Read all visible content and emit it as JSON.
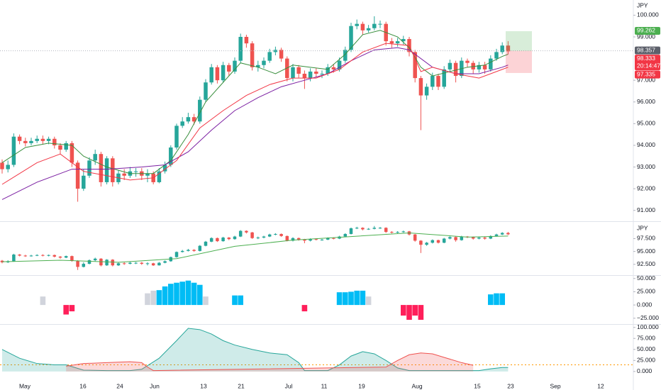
{
  "chart_data": [
    {
      "type": "candlestick",
      "unit": "JPY",
      "up_color": "#26a69a",
      "down_color": "#ef5350",
      "ylim": [
        90.5,
        100.7
      ],
      "yticks": [
        {
          "value": 100,
          "label": "100.000"
        },
        {
          "value": 99,
          "label": "99.000"
        },
        {
          "value": 97,
          "label": "97.000"
        },
        {
          "value": 96,
          "label": "96.000"
        },
        {
          "value": 95,
          "label": "95.000"
        },
        {
          "value": 94,
          "label": "94.000"
        },
        {
          "value": 93,
          "label": "93.000"
        },
        {
          "value": 92,
          "label": "92.000"
        },
        {
          "value": 91,
          "label": "91.000"
        }
      ],
      "open": [
        93.2,
        92.9,
        93.1,
        94.4,
        94.2,
        94.1,
        94.2,
        94.3,
        94.2,
        94.3,
        94.0,
        93.8,
        94.1,
        93.2,
        92.0,
        92.6,
        93.3,
        93.6,
        92.3,
        93.4,
        92.3,
        92.7,
        92.6,
        92.8,
        92.8,
        92.6,
        92.7,
        92.3,
        92.8,
        93.1,
        93.9,
        94.9,
        95.1,
        95.3,
        95.1,
        96.1,
        96.9,
        97.6,
        97.0,
        97.7,
        97.4,
        97.9,
        99.0,
        98.7,
        97.6,
        97.7,
        97.9,
        98.3,
        98.4,
        98.0,
        97.1,
        97.6,
        97.3,
        97.1,
        97.4,
        97.3,
        97.3,
        97.6,
        97.5,
        97.9,
        98.4,
        99.5,
        99.6,
        99.3,
        99.4,
        99.6,
        99.6,
        98.8,
        98.7,
        98.8,
        98.9,
        98.3,
        97.1,
        96.3,
        96.7,
        97.2,
        96.7,
        97.5,
        97.8,
        97.2,
        97.9,
        97.8,
        97.5,
        97.7,
        97.5,
        98.0,
        98.3,
        98.6
      ],
      "high": [
        93.35,
        93.3,
        94.55,
        94.5,
        94.35,
        94.35,
        94.45,
        94.45,
        94.4,
        94.4,
        94.1,
        94.2,
        94.2,
        93.3,
        92.9,
        93.45,
        93.8,
        93.7,
        93.5,
        93.5,
        92.85,
        92.9,
        93.0,
        92.95,
        92.95,
        92.9,
        92.8,
        92.95,
        93.25,
        94.0,
        95.0,
        95.3,
        95.5,
        95.45,
        96.25,
        97.05,
        97.75,
        97.7,
        97.85,
        97.8,
        98.05,
        99.15,
        99.1,
        98.8,
        97.9,
        98.05,
        98.45,
        98.55,
        98.5,
        98.1,
        97.75,
        97.7,
        97.45,
        97.55,
        97.55,
        97.45,
        97.75,
        97.75,
        98.05,
        98.55,
        99.65,
        99.8,
        99.7,
        99.55,
        99.95,
        99.75,
        99.7,
        98.95,
        98.95,
        99.05,
        99.0,
        98.4,
        97.2,
        96.85,
        97.35,
        97.3,
        97.65,
        97.95,
        97.9,
        98.05,
        98.0,
        97.9,
        97.85,
        97.85,
        98.15,
        98.45,
        98.75,
        98.8
      ],
      "low": [
        92.7,
        92.75,
        93.0,
        94.05,
        93.95,
        94.0,
        94.1,
        94.05,
        94.05,
        93.85,
        93.6,
        93.7,
        93.0,
        91.4,
        91.9,
        92.5,
        93.1,
        92.1,
        92.2,
        92.1,
        92.2,
        92.4,
        92.5,
        92.55,
        92.4,
        92.3,
        92.2,
        92.25,
        92.7,
        93.0,
        93.8,
        94.8,
        95.0,
        94.95,
        95.0,
        96.0,
        96.8,
        96.85,
        96.9,
        97.2,
        97.3,
        97.8,
        98.5,
        97.45,
        97.4,
        97.55,
        97.8,
        98.15,
        97.85,
        96.95,
        96.95,
        97.1,
        96.6,
        96.95,
        97.15,
        97.1,
        97.2,
        97.35,
        97.4,
        97.8,
        98.3,
        99.35,
        99.1,
        99.2,
        99.3,
        99.4,
        98.6,
        98.5,
        98.55,
        98.65,
        98.1,
        96.9,
        94.7,
        96.1,
        96.55,
        96.55,
        96.6,
        97.35,
        96.9,
        97.1,
        97.6,
        97.3,
        97.35,
        97.3,
        97.4,
        97.9,
        98.2,
        98.2
      ],
      "close": [
        92.9,
        93.1,
        94.4,
        94.2,
        94.1,
        94.2,
        94.3,
        94.2,
        94.3,
        94.0,
        93.8,
        94.1,
        93.2,
        92.0,
        92.6,
        93.3,
        93.6,
        92.3,
        93.4,
        92.3,
        92.7,
        92.6,
        92.8,
        92.8,
        92.6,
        92.7,
        92.3,
        92.8,
        93.1,
        93.9,
        94.9,
        95.1,
        95.3,
        95.1,
        96.1,
        96.9,
        97.6,
        97.0,
        97.7,
        97.4,
        97.9,
        99.0,
        98.7,
        97.6,
        97.7,
        97.9,
        98.3,
        98.4,
        98.0,
        97.1,
        97.6,
        97.3,
        97.1,
        97.4,
        97.3,
        97.3,
        97.6,
        97.5,
        97.9,
        98.4,
        99.5,
        99.6,
        99.3,
        99.4,
        99.6,
        99.6,
        98.8,
        98.7,
        98.8,
        98.9,
        98.3,
        97.1,
        96.3,
        96.7,
        97.2,
        96.7,
        97.5,
        97.8,
        97.2,
        97.9,
        97.8,
        97.5,
        97.7,
        97.5,
        98.0,
        98.3,
        98.6,
        98.333
      ],
      "lines": [
        {
          "color": "#388e3c",
          "x": [
            0,
            4,
            8,
            12,
            14,
            18,
            22,
            26,
            29,
            32,
            35,
            38,
            41,
            44,
            47,
            50,
            53,
            56,
            59,
            62,
            65,
            68,
            70,
            72,
            74,
            77,
            80,
            83,
            86,
            87
          ],
          "values": [
            93.2,
            93.9,
            94.1,
            94.0,
            93.5,
            93.0,
            92.7,
            92.7,
            93.3,
            94.5,
            96.0,
            96.9,
            97.8,
            97.6,
            97.3,
            97.7,
            97.6,
            97.5,
            98.2,
            99.1,
            99.3,
            99.0,
            98.5,
            97.6,
            97.2,
            97.4,
            97.6,
            97.7,
            98.1,
            98.2
          ]
        },
        {
          "color": "#7b1fa2",
          "x": [
            0,
            6,
            12,
            18,
            24,
            28,
            32,
            36,
            40,
            44,
            48,
            52,
            56,
            60,
            64,
            68,
            70,
            74,
            78,
            82,
            86,
            87
          ],
          "values": [
            91.5,
            92.3,
            92.9,
            92.9,
            93.0,
            93.1,
            93.7,
            94.7,
            95.6,
            96.2,
            96.7,
            97.0,
            97.3,
            97.9,
            98.4,
            98.5,
            98.4,
            97.6,
            97.3,
            97.3,
            97.6,
            97.7
          ]
        },
        {
          "color": "#f23645",
          "x": [
            0,
            6,
            10,
            14,
            18,
            22,
            26,
            30,
            34,
            38,
            42,
            46,
            50,
            54,
            58,
            62,
            66,
            70,
            72,
            74,
            78,
            82,
            86,
            87
          ],
          "values": [
            92.2,
            93.2,
            93.6,
            92.8,
            92.6,
            92.4,
            92.5,
            93.3,
            94.8,
            95.6,
            96.3,
            96.8,
            97.1,
            97.1,
            97.5,
            98.3,
            98.7,
            98.6,
            97.4,
            97.6,
            97.3,
            97.1,
            97.5,
            97.6
          ]
        }
      ],
      "price_labels": [
        {
          "value": 99.262,
          "color": "#4caf50"
        },
        {
          "value": 98.357,
          "color": "#5d606b"
        },
        {
          "value": 98.333,
          "color": "#f23645"
        },
        {
          "value": 97.335,
          "color": "#f23645"
        }
      ],
      "countdown": "20:14:47"
    },
    {
      "type": "candlestick",
      "unit": "JPY",
      "ylim": [
        90.4,
        100.6
      ],
      "yticks": [
        {
          "value": 97.5,
          "label": "97.500"
        },
        {
          "value": 95,
          "label": "95.000"
        },
        {
          "value": 92.5,
          "label": "92.500"
        }
      ],
      "lines": [
        {
          "color": "#4caf50",
          "x": [
            0,
            10,
            20,
            30,
            40,
            50,
            60,
            70,
            80,
            87
          ],
          "values": [
            93.0,
            93.3,
            92.9,
            93.6,
            96.0,
            97.2,
            97.9,
            98.6,
            97.8,
            98.0
          ]
        }
      ]
    },
    {
      "type": "bar",
      "ylim": [
        -36,
        55
      ],
      "yticks": [
        {
          "value": 50,
          "label": "50.000"
        },
        {
          "value": 25,
          "label": "25.000"
        },
        {
          "value": 0,
          "label": "0.000"
        },
        {
          "value": -25,
          "label": "−25.000"
        }
      ],
      "values": [
        null,
        null,
        null,
        null,
        null,
        null,
        null,
        16,
        null,
        null,
        null,
        -18,
        -12,
        null,
        null,
        null,
        null,
        null,
        null,
        null,
        null,
        null,
        null,
        null,
        null,
        22,
        27,
        28,
        35,
        40,
        42,
        44,
        46,
        42,
        38,
        16,
        null,
        null,
        null,
        null,
        18,
        18,
        null,
        null,
        null,
        null,
        null,
        null,
        null,
        null,
        null,
        null,
        -12,
        null,
        null,
        null,
        null,
        null,
        24,
        24,
        25,
        27,
        27,
        16,
        null,
        null,
        null,
        null,
        null,
        -20,
        -28,
        -20,
        -28,
        null,
        null,
        null,
        null,
        null,
        null,
        null,
        null,
        null,
        null,
        null,
        20,
        22,
        22,
        null
      ],
      "colors": [
        null,
        null,
        null,
        null,
        null,
        null,
        null,
        "#d1d4dc",
        null,
        null,
        null,
        "#ff1f5a",
        "#ff1f5a",
        null,
        null,
        null,
        null,
        null,
        null,
        null,
        null,
        null,
        null,
        null,
        null,
        "#d1d4dc",
        "#d1d4dc",
        "#00bcf5",
        "#00bcf5",
        "#00bcf5",
        "#00bcf5",
        "#00bcf5",
        "#00bcf5",
        "#00bcf5",
        "#00bcf5",
        "#d1d4dc",
        null,
        null,
        null,
        null,
        "#00bcf5",
        "#00bcf5",
        null,
        null,
        null,
        null,
        null,
        null,
        null,
        null,
        null,
        null,
        "#ff1f5a",
        null,
        null,
        null,
        null,
        null,
        "#00bcf5",
        "#00bcf5",
        "#00bcf5",
        "#00bcf5",
        "#00bcf5",
        "#d1d4dc",
        null,
        null,
        null,
        null,
        null,
        "#ff1f5a",
        "#ff1f5a",
        "#ff1f5a",
        "#ff1f5a",
        null,
        null,
        null,
        null,
        null,
        null,
        null,
        null,
        null,
        null,
        null,
        "#00bcf5",
        "#00bcf5",
        "#00bcf5",
        null
      ]
    },
    {
      "type": "line",
      "ylim": [
        -26,
        106
      ],
      "yticks": [
        {
          "value": 100,
          "label": "100.000"
        },
        {
          "value": 75,
          "label": "75.000"
        },
        {
          "value": 50,
          "label": "50.000"
        },
        {
          "value": 25,
          "label": "25.000"
        },
        {
          "value": 0,
          "label": "0.000"
        }
      ],
      "series": [
        {
          "color": "#26a69a",
          "x": [
            0,
            3,
            6,
            9,
            11,
            14,
            18,
            22,
            24,
            27,
            30,
            32,
            34,
            36,
            38,
            40,
            43,
            46,
            49,
            51,
            52,
            56,
            58,
            60,
            62,
            64,
            66,
            68,
            70,
            74,
            78,
            82,
            84,
            86,
            87
          ],
          "values": [
            50,
            30,
            18,
            15,
            15,
            3,
            2,
            2,
            5,
            30,
            70,
            98,
            95,
            85,
            70,
            60,
            50,
            42,
            38,
            20,
            2,
            2,
            15,
            35,
            45,
            40,
            25,
            8,
            2,
            2,
            2,
            2,
            6,
            9,
            9
          ]
        },
        {
          "color": "#ef5350",
          "x": [
            11,
            14,
            18,
            22,
            24,
            25,
            26,
            66,
            68,
            70,
            72,
            74,
            76,
            79,
            81
          ],
          "values": [
            12,
            18,
            20,
            22,
            20,
            10,
            2,
            10,
            25,
            38,
            42,
            40,
            32,
            20,
            14
          ]
        }
      ],
      "threshold": 15,
      "threshold_color": "#ff9800",
      "x_labels": [
        "May",
        "16",
        "24",
        "Jun",
        "13",
        "21",
        "Jul",
        "11",
        "19",
        "Aug",
        "15",
        "23",
        "Sep",
        "12"
      ]
    }
  ]
}
